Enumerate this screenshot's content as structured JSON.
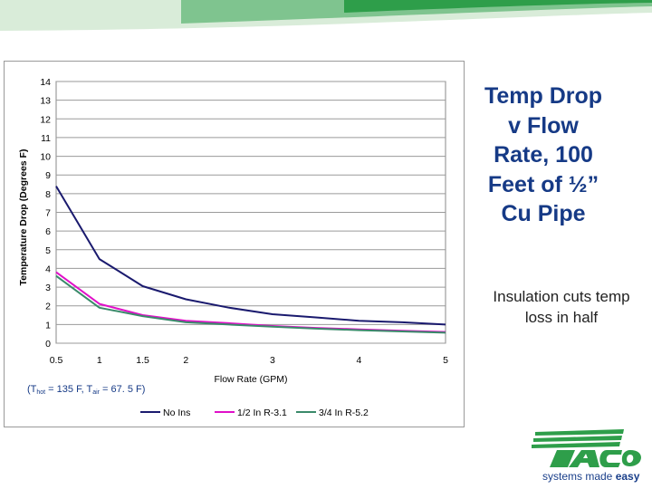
{
  "slide": {
    "title": "Temp Drop v Flow Rate, 100 Feet of ½” Cu Pipe",
    "note": "Insulation cuts temp loss in half",
    "colors": {
      "title": "#163a86",
      "brand_green": "#2e9e4a",
      "swoosh_light": "#d9ecd9"
    }
  },
  "condition": {
    "open": "(T",
    "hot_sub": "hot",
    "mid": " = 135 F, T",
    "air_sub": "air",
    "close": " = 67. 5 F)"
  },
  "logo": {
    "brand": "Taco",
    "tagline_a": "systems made ",
    "tagline_b": "easy"
  },
  "chart_data": {
    "type": "line",
    "title": "",
    "xlabel": "Flow Rate (GPM)",
    "ylabel": "Temperature Drop (Degrees F)",
    "x": [
      0.5,
      1,
      1.5,
      2,
      2.5,
      3,
      3.5,
      4,
      4.5,
      5
    ],
    "x_ticks": [
      0.5,
      1,
      1.5,
      2,
      3,
      4,
      5
    ],
    "x_tick_labels": [
      "0.5",
      "1",
      "1.5",
      "2",
      "3",
      "4",
      "5"
    ],
    "ylim": [
      0,
      14
    ],
    "y_ticks": [
      0,
      1,
      2,
      3,
      4,
      5,
      6,
      7,
      8,
      9,
      10,
      11,
      12,
      13,
      14
    ],
    "grid": "horizontal",
    "legend": "bottom",
    "series": [
      {
        "name": "No Ins",
        "color": "#1a1a6e",
        "values": [
          8.4,
          4.5,
          3.05,
          2.35,
          1.9,
          1.55,
          1.38,
          1.2,
          1.12,
          1.0
        ]
      },
      {
        "name": "1/2 In R-3.1",
        "color": "#e010c8",
        "values": [
          3.8,
          2.1,
          1.5,
          1.2,
          1.07,
          0.92,
          0.82,
          0.74,
          0.67,
          0.6
        ]
      },
      {
        "name": "3/4 In R-5.2",
        "color": "#3a8a6a",
        "values": [
          3.6,
          1.9,
          1.45,
          1.12,
          1.0,
          0.88,
          0.78,
          0.7,
          0.63,
          0.56
        ]
      }
    ]
  }
}
